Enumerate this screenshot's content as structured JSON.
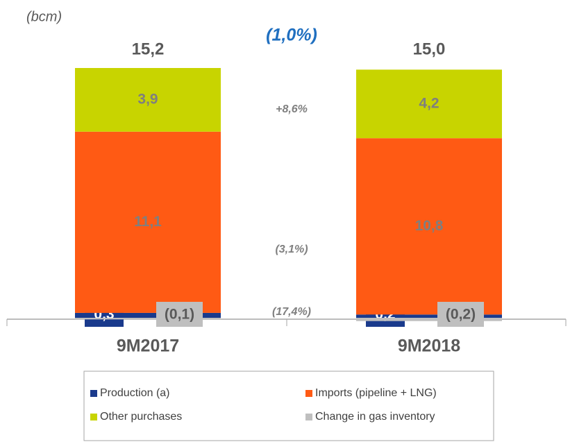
{
  "chart_data": {
    "type": "stacked-bar",
    "unit_label": "(bcm)",
    "categories": [
      "9M2017",
      "9M2018"
    ],
    "series": [
      {
        "name": "Production (a)",
        "color": "#1a3a8c",
        "values": [
          0.3,
          0.2
        ],
        "value_labels": [
          "0,3",
          "0,2"
        ]
      },
      {
        "name": "Imports (pipeline + LNG)",
        "color": "#ff5a14",
        "values": [
          11.1,
          10.8
        ],
        "value_labels": [
          "11,1",
          "10,8"
        ]
      },
      {
        "name": "Other purchases",
        "color": "#c8d400",
        "values": [
          3.9,
          4.2
        ],
        "value_labels": [
          "3,9",
          "4,2"
        ]
      },
      {
        "name": "Change in gas inventory",
        "color": "#bfbfbf",
        "values": [
          -0.1,
          -0.2
        ],
        "value_labels": [
          "(0,1)",
          "(0,2)"
        ]
      }
    ],
    "totals": [
      15.2,
      15.0
    ],
    "total_labels": [
      "15,2",
      "15,0"
    ],
    "total_change": "(1,0%)",
    "series_changes": [
      "(17,4%)",
      "(3,1%)",
      "+8,6%"
    ]
  }
}
